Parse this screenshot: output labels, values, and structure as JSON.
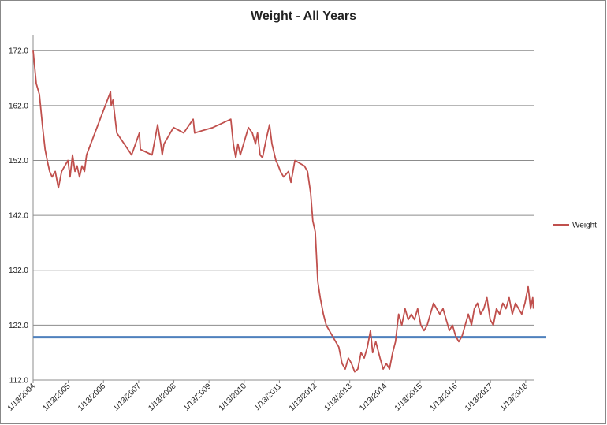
{
  "chart_data": {
    "type": "line",
    "title": "Weight - All Years",
    "x": [
      2004.0,
      2004.09,
      2004.18,
      2004.27,
      2004.34,
      2004.4,
      2004.47,
      2004.54,
      2004.63,
      2004.72,
      2004.81,
      2004.9,
      2004.99,
      2005.05,
      2005.12,
      2005.19,
      2005.25,
      2005.32,
      2005.39,
      2005.46,
      2005.52,
      2006.2,
      2006.22,
      2006.27,
      2006.38,
      2006.8,
      2007.02,
      2007.05,
      2007.38,
      2007.54,
      2007.63,
      2007.67,
      2007.72,
      2007.99,
      2008.28,
      2008.55,
      2008.59,
      2009.11,
      2009.62,
      2009.69,
      2009.76,
      2009.82,
      2009.89,
      2010.12,
      2010.23,
      2010.32,
      2010.38,
      2010.45,
      2010.52,
      2010.63,
      2010.72,
      2010.79,
      2010.9,
      2010.97,
      2011.03,
      2011.12,
      2011.26,
      2011.33,
      2011.44,
      2011.57,
      2011.71,
      2011.8,
      2011.89,
      2011.95,
      2012.02,
      2012.09,
      2012.16,
      2012.25,
      2012.33,
      2012.42,
      2012.51,
      2012.6,
      2012.69,
      2012.78,
      2012.87,
      2012.96,
      2013.05,
      2013.14,
      2013.23,
      2013.32,
      2013.41,
      2013.5,
      2013.59,
      2013.65,
      2013.74,
      2013.86,
      2013.95,
      2014.04,
      2014.13,
      2014.22,
      2014.3,
      2014.39,
      2014.48,
      2014.57,
      2014.66,
      2014.75,
      2014.84,
      2014.93,
      2015.02,
      2015.11,
      2015.2,
      2015.29,
      2015.38,
      2015.47,
      2015.56,
      2015.65,
      2015.74,
      2015.83,
      2015.92,
      2016.01,
      2016.1,
      2016.19,
      2016.28,
      2016.37,
      2016.46,
      2016.54,
      2016.63,
      2016.72,
      2016.81,
      2016.9,
      2016.99,
      2017.08,
      2017.17,
      2017.26,
      2017.35,
      2017.44,
      2017.53,
      2017.62,
      2017.71,
      2017.8,
      2017.89,
      2017.98,
      2018.07,
      2018.14,
      2018.2,
      2018.22
    ],
    "series": [
      {
        "name": "Weight",
        "color": "#c0504d",
        "values": [
          172,
          166,
          164,
          158,
          154,
          152,
          150,
          149,
          150,
          147,
          150,
          151,
          152,
          149,
          153,
          150,
          151,
          149,
          151,
          150,
          153,
          164.5,
          162,
          163,
          157,
          153,
          157,
          154,
          153,
          158.5,
          155,
          153,
          155,
          158,
          157,
          159.5,
          157,
          158,
          159.5,
          155,
          152.5,
          155,
          153,
          158,
          157,
          155,
          157,
          153,
          152.5,
          156,
          158.5,
          155,
          152,
          151,
          150,
          149,
          150,
          148,
          152,
          151.5,
          151,
          150,
          146,
          141,
          139,
          130,
          127,
          124,
          122,
          121,
          120,
          119,
          118,
          115,
          114,
          116,
          115,
          113.5,
          114,
          117,
          116,
          118,
          121,
          117,
          119,
          116,
          114,
          115,
          114,
          117,
          119,
          124,
          122,
          125,
          123,
          124,
          123,
          125,
          122,
          121,
          122,
          124,
          126,
          125,
          124,
          125,
          123,
          121,
          122,
          120,
          119,
          120,
          122,
          124,
          122,
          125,
          126,
          124,
          125,
          127,
          123,
          122,
          125,
          124,
          126,
          125,
          127,
          124,
          126,
          125,
          124,
          126,
          129,
          125,
          127,
          125
        ]
      }
    ],
    "reference_line": {
      "value": 119.8,
      "color": "#4f81bd"
    },
    "xlim": [
      2004,
      2018.25
    ],
    "xticks": [
      {
        "value": 2004,
        "label": "1/13/2004"
      },
      {
        "value": 2005,
        "label": "1/13/2005"
      },
      {
        "value": 2006,
        "label": "1/13/2006"
      },
      {
        "value": 2007,
        "label": "1/13/2007"
      },
      {
        "value": 2008,
        "label": "1/13/2008"
      },
      {
        "value": 2009,
        "label": "1/13/2009"
      },
      {
        "value": 2010,
        "label": "1/13/2010"
      },
      {
        "value": 2011,
        "label": "1/13/2011"
      },
      {
        "value": 2012,
        "label": "1/13/2012"
      },
      {
        "value": 2013,
        "label": "1/13/2013"
      },
      {
        "value": 2014,
        "label": "1/13/2014"
      },
      {
        "value": 2015,
        "label": "1/13/2015"
      },
      {
        "value": 2016,
        "label": "1/13/2016"
      },
      {
        "value": 2017,
        "label": "1/13/2017"
      },
      {
        "value": 2018,
        "label": "1/13/2018"
      }
    ],
    "ylim": [
      112,
      174.9
    ],
    "yticks": [
      {
        "value": 112,
        "label": "112.0"
      },
      {
        "value": 122,
        "label": "122.0"
      },
      {
        "value": 132,
        "label": "132.0"
      },
      {
        "value": 142,
        "label": "142.0"
      },
      {
        "value": 152,
        "label": "152.0"
      },
      {
        "value": 162,
        "label": "162.0"
      },
      {
        "value": 172,
        "label": "172.0"
      }
    ],
    "grid": true,
    "legend": "right"
  }
}
